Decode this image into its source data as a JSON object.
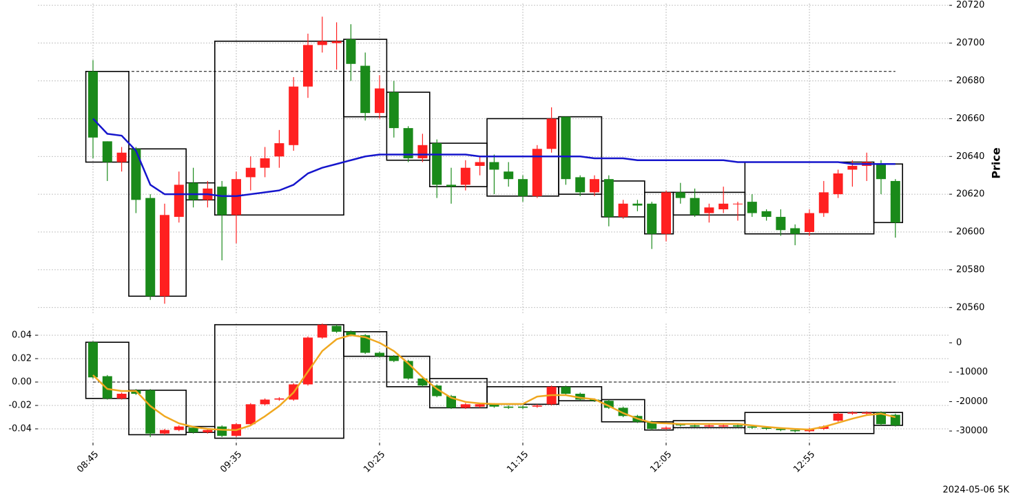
{
  "chart_data": [
    {
      "type": "candlestick",
      "y_label": "Price",
      "y_axis_side": "right",
      "open": [
        20685,
        20648,
        20637,
        20644,
        20618,
        20566,
        20608,
        20626,
        20617,
        20624,
        20609,
        20629,
        20634,
        20640,
        20646,
        20677,
        20699,
        20700,
        20702,
        20688,
        20663,
        20674,
        20655,
        20639,
        20647,
        20625,
        20625,
        20635,
        20637,
        20632,
        20628,
        20619,
        20644,
        20661,
        20629,
        20621,
        20628,
        20608,
        20615,
        20615,
        20599,
        20621,
        20618,
        20610,
        20612,
        20615,
        20616,
        20611,
        20608,
        20602,
        20600,
        20610,
        20620,
        20633,
        20635,
        20636,
        20627
      ],
      "high": [
        20691,
        20648,
        20645,
        20645,
        20620,
        20615,
        20632,
        20634,
        20627,
        20627,
        20632,
        20640,
        20645,
        20654,
        20682,
        20705,
        20714,
        20711,
        20710,
        20695,
        20683,
        20680,
        20656,
        20652,
        20649,
        20634,
        20638,
        20640,
        20641,
        20637,
        20630,
        20646,
        20666,
        20661,
        20630,
        20630,
        20630,
        20617,
        20617,
        20616,
        20622,
        20626,
        20623,
        20615,
        20624,
        20616,
        20620,
        20612,
        20612,
        20604,
        20612,
        20627,
        20633,
        20638,
        20642,
        20638,
        20628
      ],
      "low": [
        20639,
        20627,
        20632,
        20610,
        20564,
        20562,
        20605,
        20613,
        20613,
        20585,
        20594,
        20622,
        20629,
        20634,
        20643,
        20671,
        20695,
        20686,
        20680,
        20659,
        20660,
        20650,
        20637,
        20637,
        20618,
        20615,
        20622,
        20630,
        20620,
        20624,
        20616,
        20618,
        20642,
        20625,
        20619,
        20619,
        20603,
        20607,
        20611,
        20591,
        20595,
        20615,
        20608,
        20605,
        20610,
        20606,
        20608,
        20606,
        20598,
        20593,
        20598,
        20608,
        20618,
        20624,
        20627,
        20620,
        20597
      ],
      "close": [
        20650,
        20637,
        20642,
        20617,
        20566,
        20609,
        20625,
        20617,
        20623,
        20609,
        20628,
        20634,
        20639,
        20647,
        20677,
        20699,
        20701,
        20701,
        20689,
        20663,
        20676,
        20655,
        20639,
        20646,
        20625,
        20624,
        20634,
        20637,
        20633,
        20628,
        20619,
        20644,
        20660,
        20628,
        20621,
        20628,
        20608,
        20615,
        20614,
        20599,
        20621,
        20618,
        20609,
        20613,
        20615,
        20615,
        20610,
        20608,
        20601,
        20599,
        20610,
        20621,
        20631,
        20635,
        20637,
        20628,
        20605
      ],
      "up_color": "#ff2020",
      "down_color": "#1a8a1a",
      "overlay": {
        "color": "#1515cc",
        "values": [
          20660,
          20652,
          20651,
          20643,
          20625,
          20620,
          20620,
          20620,
          20620,
          20619,
          20619,
          20620,
          20621,
          20622,
          20625,
          20631,
          20634,
          20636,
          20638,
          20640,
          20641,
          20641,
          20641,
          20641,
          20641,
          20641,
          20641,
          20640,
          20640,
          20640,
          20640,
          20640,
          20640,
          20640,
          20640,
          20639,
          20639,
          20639,
          20638,
          20638,
          20638,
          20638,
          20638,
          20638,
          20638,
          20637,
          20637,
          20637,
          20637,
          20637,
          20637,
          20637,
          20637,
          20636,
          20636,
          20636,
          20636
        ]
      },
      "hline": 20685,
      "boxes": [
        {
          "start": 0,
          "end": 2,
          "high": 20685,
          "low": 20637
        },
        {
          "start": 3,
          "end": 6,
          "high": 20644,
          "low": 20566
        },
        {
          "start": 7,
          "end": 8,
          "high": 20626,
          "low": 20617
        },
        {
          "start": 9,
          "end": 17,
          "high": 20701,
          "low": 20609
        },
        {
          "start": 18,
          "end": 20,
          "high": 20702,
          "low": 20661
        },
        {
          "start": 21,
          "end": 23,
          "high": 20674,
          "low": 20638
        },
        {
          "start": 24,
          "end": 27,
          "high": 20647,
          "low": 20624
        },
        {
          "start": 28,
          "end": 32,
          "high": 20660,
          "low": 20619
        },
        {
          "start": 33,
          "end": 35,
          "high": 20661,
          "low": 20620
        },
        {
          "start": 36,
          "end": 38,
          "high": 20627,
          "low": 20608
        },
        {
          "start": 39,
          "end": 40,
          "high": 20621,
          "low": 20599
        },
        {
          "start": 41,
          "end": 45,
          "high": 20621,
          "low": 20609
        },
        {
          "start": 46,
          "end": 54,
          "high": 20637,
          "low": 20599
        },
        {
          "start": 55,
          "end": 56,
          "high": 20636,
          "low": 20605
        }
      ],
      "ylim": [
        20557,
        20721
      ],
      "yticks": [
        20560,
        20580,
        20600,
        20620,
        20640,
        20660,
        20680,
        20700,
        20720
      ],
      "grid": true
    },
    {
      "type": "candlestick",
      "y_axis_side": "left",
      "categories": [
        "08:45",
        null,
        null,
        null,
        null,
        null,
        null,
        null,
        null,
        null,
        "09:35",
        null,
        null,
        null,
        null,
        null,
        null,
        null,
        null,
        null,
        "10:25",
        null,
        null,
        null,
        null,
        null,
        null,
        null,
        null,
        null,
        "11:15",
        null,
        null,
        null,
        null,
        null,
        null,
        null,
        null,
        null,
        "12:05",
        null,
        null,
        null,
        null,
        null,
        null,
        null,
        null,
        null,
        "12:55",
        null,
        null,
        null,
        null,
        null,
        null
      ],
      "open": [
        0.034,
        0.005,
        -0.014,
        -0.007,
        -0.007,
        -0.044,
        -0.041,
        -0.039,
        -0.043,
        -0.038,
        -0.046,
        -0.036,
        -0.019,
        -0.015,
        -0.015,
        -0.002,
        0.038,
        0.048,
        0.043,
        0.04,
        0.025,
        0.022,
        0.018,
        0.003,
        -0.003,
        -0.012,
        -0.022,
        -0.021,
        -0.019,
        -0.021,
        -0.021,
        -0.021,
        -0.019,
        -0.004,
        -0.01,
        -0.015,
        -0.016,
        -0.022,
        -0.029,
        -0.034,
        -0.04,
        -0.036,
        -0.037,
        -0.038,
        -0.038,
        -0.037,
        -0.038,
        -0.039,
        -0.04,
        -0.041,
        -0.042,
        -0.04,
        -0.033,
        -0.027,
        -0.027,
        -0.026,
        -0.028
      ],
      "high": [
        0.035,
        0.006,
        -0.009,
        -0.006,
        -0.006,
        -0.04,
        -0.037,
        -0.038,
        -0.04,
        -0.037,
        -0.035,
        -0.018,
        -0.014,
        -0.013,
        -0.001,
        0.039,
        0.05,
        0.049,
        0.044,
        0.041,
        0.026,
        0.023,
        0.019,
        0.004,
        -0.002,
        -0.011,
        -0.018,
        -0.018,
        -0.018,
        -0.02,
        -0.02,
        -0.019,
        -0.003,
        -0.003,
        -0.009,
        -0.014,
        -0.015,
        -0.021,
        -0.028,
        -0.033,
        -0.038,
        -0.035,
        -0.036,
        -0.036,
        -0.036,
        -0.036,
        -0.037,
        -0.038,
        -0.039,
        -0.04,
        -0.039,
        -0.037,
        -0.026,
        -0.025,
        -0.025,
        -0.025,
        -0.027
      ],
      "low": [
        0.003,
        -0.015,
        -0.015,
        -0.011,
        -0.047,
        -0.045,
        -0.042,
        -0.044,
        -0.044,
        -0.047,
        -0.047,
        -0.037,
        -0.02,
        -0.016,
        -0.016,
        -0.003,
        0.037,
        0.042,
        0.039,
        0.024,
        0.021,
        0.017,
        0.002,
        -0.004,
        -0.013,
        -0.023,
        -0.023,
        -0.022,
        -0.022,
        -0.023,
        -0.023,
        -0.022,
        -0.02,
        -0.011,
        -0.016,
        -0.017,
        -0.023,
        -0.03,
        -0.035,
        -0.041,
        -0.041,
        -0.038,
        -0.039,
        -0.039,
        -0.039,
        -0.039,
        -0.04,
        -0.041,
        -0.042,
        -0.043,
        -0.043,
        -0.041,
        -0.034,
        -0.028,
        -0.028,
        -0.037,
        -0.038
      ],
      "close": [
        0.004,
        -0.014,
        -0.01,
        -0.01,
        -0.044,
        -0.041,
        -0.038,
        -0.043,
        -0.041,
        -0.046,
        -0.036,
        -0.019,
        -0.015,
        -0.014,
        -0.002,
        0.038,
        0.049,
        0.043,
        0.04,
        0.025,
        0.022,
        0.018,
        0.003,
        -0.003,
        -0.012,
        -0.022,
        -0.019,
        -0.019,
        -0.021,
        -0.022,
        -0.022,
        -0.02,
        -0.004,
        -0.01,
        -0.015,
        -0.016,
        -0.022,
        -0.029,
        -0.034,
        -0.04,
        -0.039,
        -0.037,
        -0.038,
        -0.037,
        -0.037,
        -0.038,
        -0.039,
        -0.04,
        -0.041,
        -0.042,
        -0.04,
        -0.038,
        -0.027,
        -0.026,
        -0.026,
        -0.036,
        -0.037
      ],
      "up_color": "#ff2020",
      "down_color": "#1a8a1a",
      "overlay": {
        "color": "#f0a820",
        "axis": "y2",
        "values": [
          -11000,
          -15700,
          -16400,
          -16400,
          -21500,
          -25000,
          -27400,
          -28600,
          -29300,
          -29600,
          -29700,
          -28100,
          -25000,
          -21500,
          -16900,
          -9800,
          -2800,
          1200,
          2600,
          1900,
          0,
          -2800,
          -7000,
          -11700,
          -15700,
          -18700,
          -20100,
          -20600,
          -20800,
          -20800,
          -20800,
          -18300,
          -17800,
          -17800,
          -18700,
          -19200,
          -21500,
          -23900,
          -25800,
          -27200,
          -27400,
          -27600,
          -27600,
          -27600,
          -27600,
          -27600,
          -28100,
          -28600,
          -29000,
          -29300,
          -29500,
          -28600,
          -27200,
          -25800,
          -24600,
          -24100,
          -25300
        ]
      },
      "hline": 0,
      "boxes": [
        {
          "start": 0,
          "end": 2,
          "high": 0.034,
          "low": -0.014
        },
        {
          "start": 3,
          "end": 6,
          "high": -0.007,
          "low": -0.045
        },
        {
          "start": 7,
          "end": 8,
          "high": -0.038,
          "low": -0.043
        },
        {
          "start": 9,
          "end": 17,
          "high": 0.049,
          "low": -0.048
        },
        {
          "start": 18,
          "end": 20,
          "high": 0.043,
          "low": 0.022
        },
        {
          "start": 21,
          "end": 23,
          "high": 0.022,
          "low": -0.004
        },
        {
          "start": 24,
          "end": 27,
          "high": 0.003,
          "low": -0.022
        },
        {
          "start": 28,
          "end": 32,
          "high": -0.004,
          "low": -0.019
        },
        {
          "start": 33,
          "end": 35,
          "high": -0.004,
          "low": -0.016
        },
        {
          "start": 36,
          "end": 38,
          "high": -0.015,
          "low": -0.034
        },
        {
          "start": 39,
          "end": 40,
          "high": -0.034,
          "low": -0.041
        },
        {
          "start": 41,
          "end": 45,
          "high": -0.033,
          "low": -0.039
        },
        {
          "start": 46,
          "end": 54,
          "high": -0.026,
          "low": -0.044
        },
        {
          "start": 55,
          "end": 56,
          "high": -0.026,
          "low": -0.037
        }
      ],
      "ylim": [
        -0.05,
        0.05
      ],
      "yticks": [
        -0.04,
        -0.02,
        {
          "value": 0,
          "label": "0.00"
        },
        0.02,
        0.04
      ],
      "y2lim": [
        -33250,
        6550
      ],
      "y2ticks": [
        -30000,
        -20000,
        -10000,
        0
      ],
      "grid": true,
      "annotation": "2024-05-06 5K"
    }
  ]
}
